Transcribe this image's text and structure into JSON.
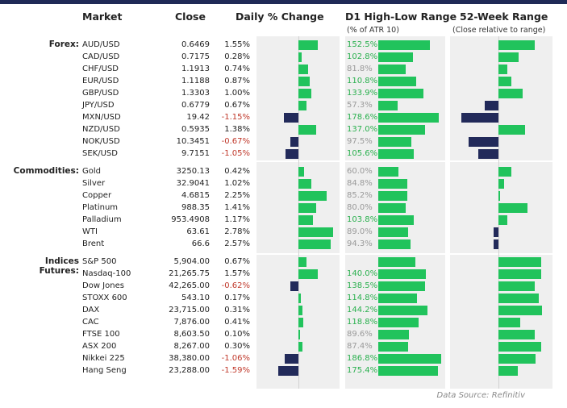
{
  "headers": {
    "market": "Market",
    "close": "Close",
    "daily_change": "Daily % Change",
    "d1_range": "D1 High-Low Range",
    "d1_range_sub": "(% of ATR 10)",
    "week52": "52-Week Range",
    "week52_sub": "(Close relative to range)"
  },
  "colors": {
    "positive": "#21c35c",
    "negative": "#222a5a",
    "neg_text": "#c0392b",
    "panel": "#efefef"
  },
  "sections": [
    {
      "label": "Forex:",
      "rows": [
        {
          "name": "AUD/USD",
          "close": "0.6469",
          "pct": "1.55%",
          "pct_value": 1.55,
          "hl": "152.5%",
          "hl_value": 152.5,
          "wk52": 0.72
        },
        {
          "name": "CAD/USD",
          "close": "0.7175",
          "pct": "0.28%",
          "pct_value": 0.28,
          "hl": "102.8%",
          "hl_value": 102.8,
          "wk52": 0.4
        },
        {
          "name": "CHF/USD",
          "close": "1.1913",
          "pct": "0.74%",
          "pct_value": 0.74,
          "hl": "81.8%",
          "hl_value": 81.8,
          "wk52": 0.18
        },
        {
          "name": "EUR/USD",
          "close": "1.1188",
          "pct": "0.87%",
          "pct_value": 0.87,
          "hl": "110.8%",
          "hl_value": 110.8,
          "wk52": 0.26
        },
        {
          "name": "GBP/USD",
          "close": "1.3303",
          "pct": "1.00%",
          "pct_value": 1.0,
          "hl": "133.9%",
          "hl_value": 133.9,
          "wk52": 0.48
        },
        {
          "name": "JPY/USD",
          "close": "0.6779",
          "pct": "0.67%",
          "pct_value": 0.67,
          "hl": "57.3%",
          "hl_value": 57.3,
          "wk52": -0.28
        },
        {
          "name": "MXN/USD",
          "close": "19.42",
          "pct": "-1.15%",
          "pct_value": -1.15,
          "hl": "178.6%",
          "hl_value": 178.6,
          "wk52": -0.75
        },
        {
          "name": "NZD/USD",
          "close": "0.5935",
          "pct": "1.38%",
          "pct_value": 1.38,
          "hl": "137.0%",
          "hl_value": 137.0,
          "wk52": 0.54
        },
        {
          "name": "NOK/USD",
          "close": "10.3451",
          "pct": "-0.67%",
          "pct_value": -0.67,
          "hl": "97.5%",
          "hl_value": 97.5,
          "wk52": -0.6
        },
        {
          "name": "SEK/USD",
          "close": "9.7151",
          "pct": "-1.05%",
          "pct_value": -1.05,
          "hl": "105.6%",
          "hl_value": 105.6,
          "wk52": -0.4
        }
      ]
    },
    {
      "label": "Commodities:",
      "rows": [
        {
          "name": "Gold",
          "close": "3250.13",
          "pct": "0.42%",
          "pct_value": 0.42,
          "hl": "60.0%",
          "hl_value": 60.0,
          "wk52": 0.26
        },
        {
          "name": "Silver",
          "close": "32.9041",
          "pct": "1.02%",
          "pct_value": 1.02,
          "hl": "84.8%",
          "hl_value": 84.8,
          "wk52": 0.12
        },
        {
          "name": "Copper",
          "close": "4.6815",
          "pct": "2.25%",
          "pct_value": 2.25,
          "hl": "85.2%",
          "hl_value": 85.2,
          "wk52": 0.02
        },
        {
          "name": "Platinum",
          "close": "988.35",
          "pct": "1.41%",
          "pct_value": 1.41,
          "hl": "80.0%",
          "hl_value": 80.0,
          "wk52": 0.58
        },
        {
          "name": "Palladium",
          "close": "953.4908",
          "pct": "1.17%",
          "pct_value": 1.17,
          "hl": "103.8%",
          "hl_value": 103.8,
          "wk52": 0.18
        },
        {
          "name": "WTI",
          "close": "63.61",
          "pct": "2.78%",
          "pct_value": 2.78,
          "hl": "89.0%",
          "hl_value": 89.0,
          "wk52": -0.1
        },
        {
          "name": "Brent",
          "close": "66.6",
          "pct": "2.57%",
          "pct_value": 2.57,
          "hl": "94.3%",
          "hl_value": 94.3,
          "wk52": -0.1
        }
      ]
    },
    {
      "label": "Indices Futures:",
      "rows": [
        {
          "name": "S&P 500",
          "close": "5,904.00",
          "pct": "0.67%",
          "pct_value": 0.67,
          "hl": "",
          "hl_value": 110.0,
          "wk52": 0.86
        },
        {
          "name": "Nasdaq-100",
          "close": "21,265.75",
          "pct": "1.57%",
          "pct_value": 1.57,
          "hl": "140.0%",
          "hl_value": 140.0,
          "wk52": 0.86
        },
        {
          "name": "Dow Jones",
          "close": "42,265.00",
          "pct": "-0.62%",
          "pct_value": -0.62,
          "hl": "138.5%",
          "hl_value": 138.5,
          "wk52": 0.72
        },
        {
          "name": "STOXX 600",
          "close": "543.10",
          "pct": "0.17%",
          "pct_value": 0.17,
          "hl": "114.8%",
          "hl_value": 114.8,
          "wk52": 0.8
        },
        {
          "name": "DAX",
          "close": "23,715.00",
          "pct": "0.31%",
          "pct_value": 0.31,
          "hl": "144.2%",
          "hl_value": 144.2,
          "wk52": 0.87
        },
        {
          "name": "CAC",
          "close": "7,876.00",
          "pct": "0.41%",
          "pct_value": 0.41,
          "hl": "118.8%",
          "hl_value": 118.8,
          "wk52": 0.43
        },
        {
          "name": "FTSE 100",
          "close": "8,603.50",
          "pct": "0.10%",
          "pct_value": 0.1,
          "hl": "89.6%",
          "hl_value": 89.6,
          "wk52": 0.72
        },
        {
          "name": "ASX 200",
          "close": "8,267.00",
          "pct": "0.30%",
          "pct_value": 0.3,
          "hl": "87.4%",
          "hl_value": 87.4,
          "wk52": 0.86
        },
        {
          "name": "Nikkei 225",
          "close": "38,380.00",
          "pct": "-1.06%",
          "pct_value": -1.06,
          "hl": "186.8%",
          "hl_value": 186.8,
          "wk52": 0.74
        },
        {
          "name": "Hang Seng",
          "close": "23,288.00",
          "pct": "-1.59%",
          "pct_value": -1.59,
          "hl": "175.4%",
          "hl_value": 175.4,
          "wk52": 0.38
        }
      ]
    }
  ],
  "source": "Data Source: Refinitiv"
}
